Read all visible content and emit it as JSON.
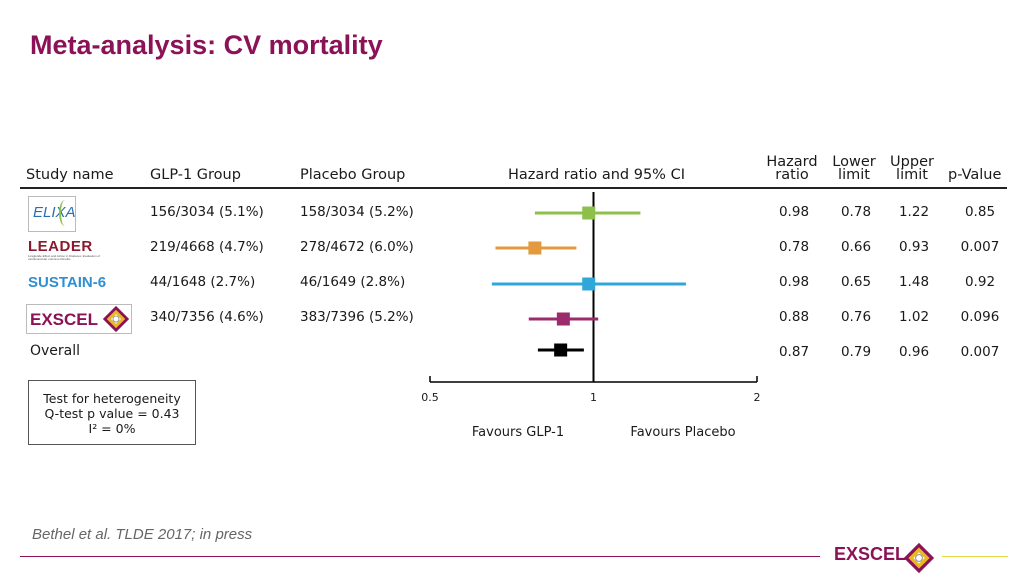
{
  "slide": {
    "title": "Meta-analysis: CV mortality",
    "citation": "Bethel et al.  TLDE 2017; in press",
    "footer_logo": "EXSCEL"
  },
  "table": {
    "headers": {
      "study": "Study name",
      "glp1": "GLP-1 Group",
      "placebo": "Placebo Group",
      "plot": "Hazard ratio and 95% CI",
      "hr_line1": "Hazard",
      "hr_line2": "ratio",
      "lower_line1": "Lower",
      "lower_line2": "limit",
      "upper_line1": "Upper",
      "upper_line2": "limit",
      "p": "p-Value"
    },
    "rows": [
      {
        "study": "ELIXA",
        "glp1": "156/3034 (5.1%)",
        "placebo": "158/3034 (5.2%)",
        "hr": "0.98",
        "lower": "0.78",
        "upper": "1.22",
        "p": "0.85"
      },
      {
        "study": "LEADER",
        "glp1": "219/4668 (4.7%)",
        "placebo": "278/4672 (6.0%)",
        "hr": "0.78",
        "lower": "0.66",
        "upper": "0.93",
        "p": "0.007"
      },
      {
        "study": "SUSTAIN-6",
        "glp1": "44/1648 (2.7%)",
        "placebo": "46/1649 (2.8%)",
        "hr": "0.98",
        "lower": "0.65",
        "upper": "1.48",
        "p": "0.92"
      },
      {
        "study": "EXSCEL",
        "glp1": "340/7356 (4.6%)",
        "placebo": "383/7396 (5.2%)",
        "hr": "0.88",
        "lower": "0.76",
        "upper": "1.02",
        "p": "0.096"
      },
      {
        "study": "Overall",
        "glp1": "",
        "placebo": "",
        "hr": "0.87",
        "lower": "0.79",
        "upper": "0.96",
        "p": "0.007"
      }
    ],
    "logos": {
      "leader_sub": "Liraglutide Effect and Action in Diabetes: Evaluation of cardiovascular outcome Results"
    }
  },
  "heterogeneity": {
    "line1": "Test for heterogeneity",
    "line2": "Q-test p value = 0.43",
    "line3": "I² = 0%"
  },
  "chart_data": {
    "type": "forest",
    "title": "Hazard ratio and 95% CI",
    "scale": "log",
    "xlim": [
      0.5,
      2
    ],
    "ticks": [
      0.5,
      1,
      2
    ],
    "tick_labels": [
      "0.5",
      "1",
      "2"
    ],
    "reference_line": 1,
    "favours_left": "Favours GLP-1",
    "favours_right": "Favours Placebo",
    "series": [
      {
        "name": "ELIXA",
        "hr": 0.98,
        "lower": 0.78,
        "upper": 1.22,
        "color": "#8cc04b"
      },
      {
        "name": "LEADER",
        "hr": 0.78,
        "lower": 0.66,
        "upper": 0.93,
        "color": "#e39a3f"
      },
      {
        "name": "SUSTAIN-6",
        "hr": 0.98,
        "lower": 0.65,
        "upper": 1.48,
        "color": "#31a6d8"
      },
      {
        "name": "EXSCEL",
        "hr": 0.88,
        "lower": 0.76,
        "upper": 1.02,
        "color": "#9b2b6b"
      },
      {
        "name": "Overall",
        "hr": 0.87,
        "lower": 0.79,
        "upper": 0.96,
        "color": "#000000"
      }
    ]
  }
}
